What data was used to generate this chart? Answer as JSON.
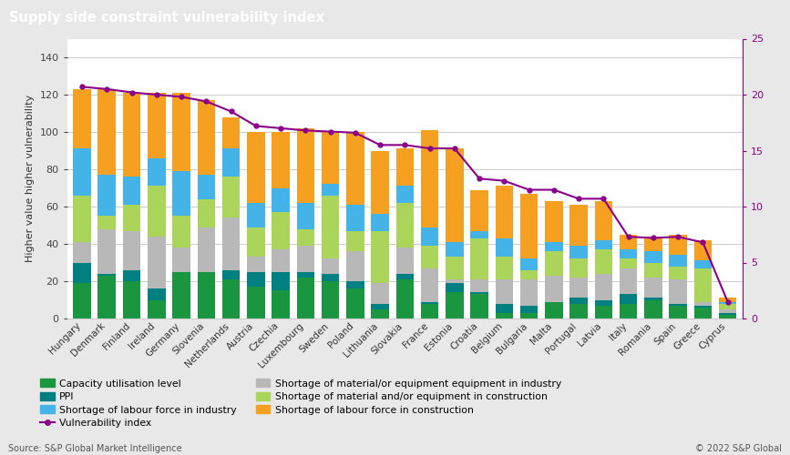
{
  "title": "Supply side constraint vulnerability index",
  "source": "Source: S&P Global Market Intelligence",
  "copyright": "© 2022 S&P Global",
  "background_color": "#e8e8e8",
  "plot_background": "#ffffff",
  "title_bg_color": "#7a7a7a",
  "title_text_color": "#ffffff",
  "countries": [
    "Hungary",
    "Denmark",
    "Finland",
    "Ireland",
    "Germany",
    "Slovenia",
    "Netherlands",
    "Austria",
    "Czechia",
    "Luxembourg",
    "Sweden",
    "Poland",
    "Lithuania",
    "Slovakia",
    "France",
    "Estonia",
    "Croatia",
    "Belgium",
    "Bulgaria",
    "Malta",
    "Portugal",
    "Latvia",
    "Italy",
    "Romania",
    "Spain",
    "Greece",
    "Cyprus"
  ],
  "capacity_utilisation": [
    19,
    23,
    20,
    10,
    25,
    25,
    21,
    17,
    15,
    22,
    20,
    16,
    5,
    21,
    8,
    14,
    13,
    3,
    3,
    9,
    8,
    7,
    8,
    10,
    7,
    6,
    2
  ],
  "ppi": [
    11,
    1,
    6,
    6,
    0,
    0,
    5,
    8,
    10,
    3,
    4,
    4,
    3,
    3,
    1,
    5,
    1,
    5,
    4,
    0,
    3,
    3,
    5,
    1,
    1,
    1,
    1
  ],
  "shortage_material_industry": [
    11,
    24,
    21,
    28,
    13,
    24,
    28,
    8,
    12,
    14,
    8,
    16,
    11,
    14,
    18,
    2,
    7,
    13,
    14,
    14,
    11,
    14,
    14,
    11,
    13,
    2,
    2
  ],
  "shortage_material_construction": [
    25,
    7,
    14,
    27,
    17,
    15,
    22,
    16,
    20,
    9,
    34,
    11,
    28,
    24,
    12,
    12,
    22,
    12,
    5,
    13,
    10,
    13,
    5,
    8,
    7,
    18,
    3
  ],
  "shortage_labour_industry": [
    25,
    22,
    15,
    15,
    24,
    13,
    15,
    13,
    13,
    14,
    6,
    14,
    9,
    9,
    10,
    8,
    4,
    10,
    6,
    5,
    7,
    5,
    5,
    6,
    6,
    4,
    1
  ],
  "shortage_labour_construction": [
    32,
    46,
    45,
    35,
    42,
    40,
    17,
    38,
    30,
    40,
    28,
    39,
    34,
    20,
    52,
    50,
    22,
    28,
    35,
    22,
    22,
    21,
    8,
    8,
    11,
    11,
    2
  ],
  "vulnerability_index": [
    20.7,
    20.5,
    20.2,
    20.0,
    19.8,
    19.4,
    18.5,
    17.2,
    17.0,
    16.8,
    16.7,
    16.6,
    15.5,
    15.5,
    15.2,
    15.2,
    12.5,
    12.3,
    11.5,
    11.5,
    10.7,
    10.7,
    7.3,
    7.2,
    7.3,
    6.8,
    1.5
  ],
  "colors": {
    "capacity_utilisation": "#1a9641",
    "ppi": "#008080",
    "shortage_material_industry": "#b8b8b8",
    "shortage_material_construction": "#aad45a",
    "shortage_labour_industry": "#44b4e8",
    "shortage_labour_construction": "#f5a020",
    "vulnerability_index": "#8b008b"
  },
  "ylim_left": [
    0,
    150
  ],
  "ylim_right": [
    0,
    25
  ],
  "yticks_left": [
    0,
    20,
    40,
    60,
    80,
    100,
    120,
    140
  ],
  "yticks_right": [
    0,
    5,
    10,
    15,
    20,
    25
  ],
  "legend_col1": [
    "Capacity utilisation level",
    "PPI",
    "Shortage of labour force in industry",
    "Vulnerability index"
  ],
  "legend_col2": [
    "Shortage of material/or equipment equipment in industry",
    "Shortage of material and/or equipment in construction",
    "Shortage of labour force in construction"
  ]
}
